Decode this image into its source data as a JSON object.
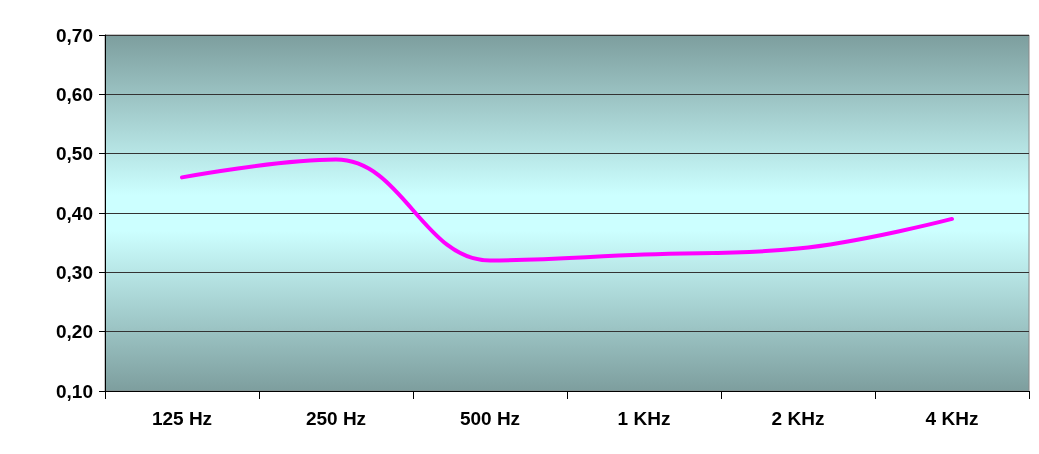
{
  "chart_data": {
    "type": "line",
    "categories": [
      "125 Hz",
      "250 Hz",
      "500 Hz",
      "1 KHz",
      "2 KHz",
      "4 KHz"
    ],
    "series": [
      {
        "color": "#ff00ff",
        "values": [
          0.46,
          0.49,
          0.32,
          0.33,
          0.34,
          0.39
        ]
      }
    ],
    "ylim": [
      0.1,
      0.7
    ],
    "yticks": [
      {
        "value": 0.1,
        "label": "0,10"
      },
      {
        "value": 0.2,
        "label": "0,20"
      },
      {
        "value": 0.3,
        "label": "0,30"
      },
      {
        "value": 0.4,
        "label": "0,40"
      },
      {
        "value": 0.5,
        "label": "0,50"
      },
      {
        "value": 0.6,
        "label": "0,60"
      },
      {
        "value": 0.7,
        "label": "0,70"
      }
    ],
    "grid": "y",
    "marker": "none",
    "line_style": "solid"
  }
}
